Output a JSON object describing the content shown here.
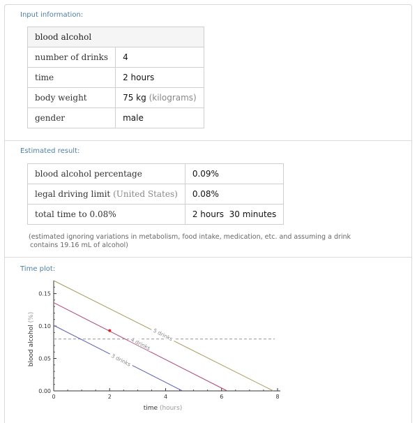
{
  "input": {
    "title": "Input information:",
    "header": "blood alcohol",
    "rows": [
      {
        "label": "number of drinks",
        "value": "4",
        "unit": ""
      },
      {
        "label": "time",
        "value": "2 hours",
        "unit": ""
      },
      {
        "label": "body weight",
        "value": "75 kg",
        "unit": "(kilograms)"
      },
      {
        "label": "gender",
        "value": "male",
        "unit": ""
      }
    ]
  },
  "result": {
    "title": "Estimated result:",
    "rows": [
      {
        "label": "blood alcohol percentage",
        "qualifier": "",
        "value": "0.09%"
      },
      {
        "label": "legal driving limit",
        "qualifier": "(United States)",
        "value": "0.08%"
      },
      {
        "label": "total time to 0.08%",
        "qualifier": "",
        "value": "2 hours  30 minutes"
      }
    ],
    "note_line1": "(estimated ignoring variations in metabolism, food intake, medication, etc. and assuming a drink",
    "note_line2": "contains 19.16 mL of alcohol)"
  },
  "plot": {
    "title": "Time plot:"
  },
  "chart_data": {
    "type": "line",
    "title": "",
    "xlabel": "time",
    "xlabel_unit": "(hours)",
    "ylabel": "blood alcohol",
    "ylabel_unit": "(%)",
    "xlim": [
      0,
      8.1
    ],
    "ylim": [
      0,
      0.17
    ],
    "x_ticks": [
      0,
      2,
      4,
      6,
      8
    ],
    "y_ticks": [
      0.0,
      0.05,
      0.1,
      0.15
    ],
    "y_tick_labels": [
      "0.00",
      "0.05",
      "0.10",
      "0.15"
    ],
    "series": [
      {
        "name": "3 drinks",
        "color": "#5a5fb5",
        "x": [
          0,
          4.6
        ],
        "y": [
          0.101,
          0
        ]
      },
      {
        "name": "4 drinks",
        "color": "#b0457a",
        "x": [
          0,
          6.2
        ],
        "y": [
          0.136,
          0
        ]
      },
      {
        "name": "5 drinks",
        "color": "#a89a5c",
        "x": [
          0,
          7.85
        ],
        "y": [
          0.17,
          0
        ]
      }
    ],
    "series_labels": [
      {
        "name": "3 drinks",
        "x": 2.4,
        "y": 0.047
      },
      {
        "name": "4 drinks",
        "x": 3.1,
        "y": 0.072
      },
      {
        "name": "5 drinks",
        "x": 3.9,
        "y": 0.086
      }
    ],
    "limit_line": {
      "y": 0.08,
      "color": "#aaaaaa"
    },
    "current_point": {
      "x": 2,
      "y": 0.093,
      "color": "#e02020"
    }
  }
}
